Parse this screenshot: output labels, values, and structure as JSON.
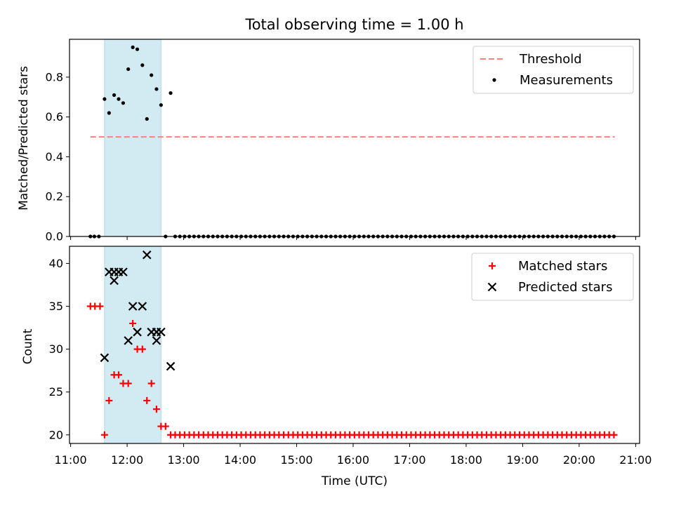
{
  "chart_data": {
    "title": "Total observing time = 1.00 h",
    "xlabel": "Time (UTC)",
    "x_ticks": [
      "11:00",
      "12:00",
      "13:00",
      "14:00",
      "15:00",
      "16:00",
      "17:00",
      "18:00",
      "19:00",
      "20:00",
      "21:00"
    ],
    "x_range_hours": [
      10.98,
      21.07
    ],
    "highlight_span_hours": [
      11.6,
      12.6
    ],
    "highlight_color": "#add8e6",
    "panels": [
      {
        "type": "scatter",
        "ylabel": "Matched/Predicted stars",
        "ylim": [
          0,
          0.99
        ],
        "y_ticks": [
          0.0,
          0.2,
          0.4,
          0.6,
          0.8
        ],
        "legend_position": "top-right",
        "threshold": {
          "name": "Threshold",
          "value": 0.5,
          "x_start": 11.35,
          "x_end": 20.63,
          "color": "#ff7f7f"
        },
        "measurements": {
          "name": "Measurements",
          "color": "#000000",
          "points": [
            [
              11.35,
              0.0
            ],
            [
              11.42,
              0.0
            ],
            [
              11.5,
              0.0
            ],
            [
              11.6,
              0.69
            ],
            [
              11.68,
              0.62
            ],
            [
              11.77,
              0.71
            ],
            [
              11.85,
              0.69
            ],
            [
              11.93,
              0.67
            ],
            [
              12.02,
              0.84
            ],
            [
              12.1,
              0.95
            ],
            [
              12.18,
              0.94
            ],
            [
              12.27,
              0.86
            ],
            [
              12.35,
              0.59
            ],
            [
              12.43,
              0.81
            ],
            [
              12.52,
              0.74
            ],
            [
              12.6,
              0.66
            ],
            [
              12.68,
              0.0
            ],
            [
              12.77,
              0.72
            ]
          ],
          "zero_series_start": 12.85,
          "zero_series_end": 20.63,
          "zero_series_step": 0.0835
        }
      },
      {
        "type": "scatter",
        "ylabel": "Count",
        "ylim": [
          19,
          42
        ],
        "y_ticks": [
          20,
          25,
          30,
          35,
          40
        ],
        "legend_position": "top-right",
        "matched": {
          "name": "Matched stars",
          "color": "#ff0000",
          "points": [
            [
              11.35,
              35
            ],
            [
              11.43,
              35
            ],
            [
              11.52,
              35
            ],
            [
              11.6,
              20
            ],
            [
              11.68,
              24
            ],
            [
              11.77,
              27
            ],
            [
              11.85,
              27
            ],
            [
              11.93,
              26
            ],
            [
              12.02,
              26
            ],
            [
              12.1,
              33
            ],
            [
              12.18,
              30
            ],
            [
              12.27,
              30
            ],
            [
              12.35,
              24
            ],
            [
              12.43,
              26
            ],
            [
              12.52,
              23
            ],
            [
              12.6,
              21
            ],
            [
              12.68,
              21
            ],
            [
              12.77,
              20
            ]
          ],
          "constant_series_value": 20,
          "constant_series_start": 12.85,
          "constant_series_end": 20.63,
          "constant_series_step": 0.0835
        },
        "predicted": {
          "name": "Predicted stars",
          "color": "#000000",
          "points": [
            [
              11.6,
              29
            ],
            [
              11.68,
              39
            ],
            [
              11.77,
              38
            ],
            [
              11.77,
              39
            ],
            [
              11.85,
              39
            ],
            [
              11.93,
              39
            ],
            [
              12.02,
              31
            ],
            [
              12.1,
              35
            ],
            [
              12.18,
              32
            ],
            [
              12.27,
              35
            ],
            [
              12.35,
              41
            ],
            [
              12.43,
              32
            ],
            [
              12.52,
              31
            ],
            [
              12.52,
              32
            ],
            [
              12.6,
              32
            ],
            [
              12.77,
              28
            ]
          ]
        }
      }
    ]
  }
}
